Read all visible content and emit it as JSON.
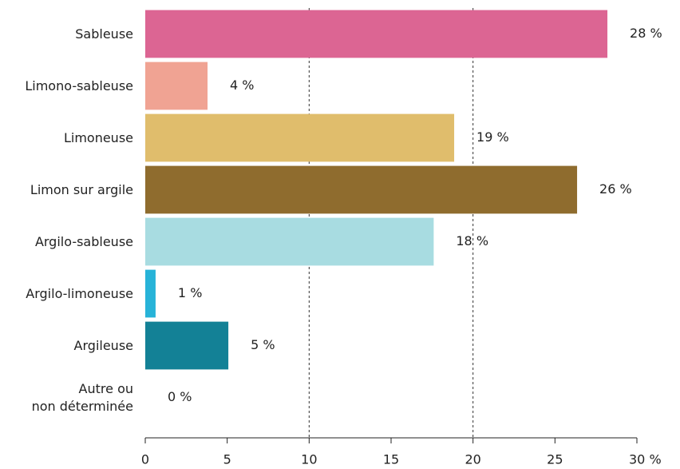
{
  "chart_data": {
    "type": "barh",
    "categories": [
      "Sableuse",
      "Limono-sableuse",
      "Limoneuse",
      "Limon sur argile",
      "Argilo-sableuse",
      "Argilo-limoneuse",
      "Argileuse",
      "Autre ou\nnon déterminée"
    ],
    "values": [
      28.2,
      3.8,
      18.85,
      26.35,
      17.6,
      0.63,
      5.07,
      0
    ],
    "value_labels": [
      "28 %",
      "4 %",
      "19 %",
      "26 %",
      "18 %",
      "1 %",
      "5 %",
      "0 %"
    ],
    "colors": [
      "#dc6593",
      "#f0a393",
      "#e0bd6c",
      "#8f6c2e",
      "#a8dce1",
      "#27b3d8",
      "#138196",
      "#ffffff"
    ],
    "xlim": [
      0,
      30
    ],
    "xticks": [
      0,
      5,
      10,
      15,
      20,
      25,
      {
        "value": 30,
        "label": "30 %"
      }
    ],
    "gridlines": [
      10,
      20
    ]
  }
}
